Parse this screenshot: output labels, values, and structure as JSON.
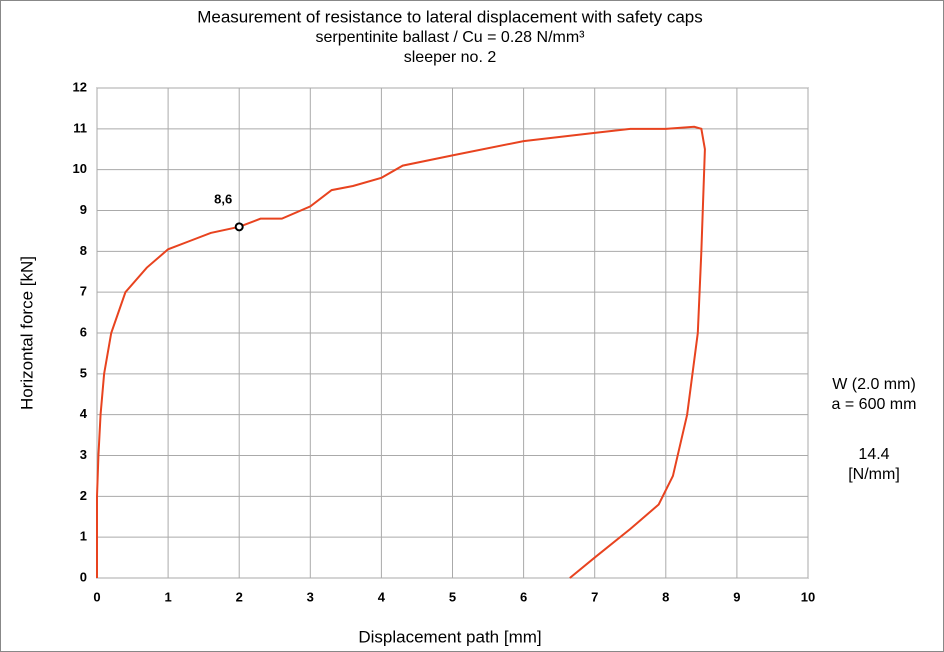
{
  "chart_data": {
    "type": "line",
    "title": "Measurement of resistance to lateral displacement with safety caps",
    "subtitle": "serpentinite ballast / Cu = 0.28 N/mm³",
    "subtitle2": "sleeper no. 2",
    "subtitle_color": "#3b3bb0",
    "xlabel": "Displacement path [mm]",
    "ylabel": "Horizontal force [kN]",
    "x": [
      0,
      0,
      0.02,
      0.05,
      0.1,
      0.2,
      0.4,
      0.7,
      1.0,
      1.3,
      1.6,
      2.0,
      2.3,
      2.6,
      3.0,
      3.3,
      3.6,
      4.0,
      4.3,
      5.0,
      6.0,
      7.0,
      7.5,
      8.0,
      8.4,
      8.5,
      8.55,
      8.5,
      8.45,
      8.3,
      8.1,
      7.9,
      7.5,
      7.0,
      6.65
    ],
    "series": [
      {
        "name": "sleeper no. 2",
        "color": "#e8431f",
        "values": [
          0,
          2,
          3,
          4,
          5,
          6,
          7,
          7.6,
          8.05,
          8.25,
          8.45,
          8.6,
          8.8,
          8.8,
          9.1,
          9.5,
          9.6,
          9.8,
          10.1,
          10.35,
          10.7,
          10.9,
          11.0,
          11.0,
          11.05,
          11.0,
          10.5,
          8,
          6,
          4,
          2.5,
          1.8,
          1.2,
          0.5,
          0
        ]
      }
    ],
    "annotation": {
      "x": 2,
      "y": 8.6,
      "label": "8,6"
    },
    "side_notes": [
      {
        "text": "W (2.0 mm)",
        "color": "#000000"
      },
      {
        "text": "a = 600 mm",
        "color": "#000000"
      },
      {
        "text": "14.4",
        "color": "#e8431f"
      },
      {
        "text": "[N/mm]",
        "color": "#000000"
      }
    ],
    "xlim": [
      0,
      10
    ],
    "xticks": [
      0,
      1,
      2,
      3,
      4,
      5,
      6,
      7,
      8,
      9,
      10
    ],
    "ylim": [
      0,
      12
    ],
    "yticks": [
      0,
      1,
      2,
      3,
      4,
      5,
      6,
      7,
      8,
      9,
      10,
      11,
      12
    ],
    "grid": true
  }
}
